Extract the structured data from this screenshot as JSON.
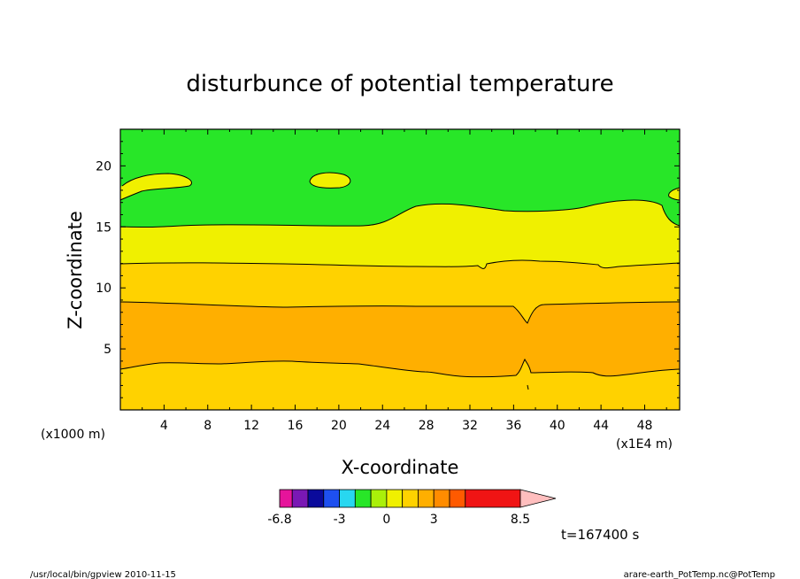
{
  "chart_data": {
    "type": "heatmap",
    "title": "disturbunce of potential temperature",
    "xlabel": "X-coordinate",
    "ylabel": "Z-coordinate",
    "x_unit_note": "(x1E4 m)",
    "y_unit_note": "(x1000 m)",
    "xlim": [
      0,
      51.2
    ],
    "ylim": [
      0,
      23
    ],
    "xticks": [
      "4",
      "8",
      "12",
      "16",
      "20",
      "24",
      "28",
      "32",
      "36",
      "40",
      "44",
      "48"
    ],
    "yticks": [
      "5",
      "10",
      "15",
      "20"
    ],
    "xtick_values": [
      4,
      8,
      12,
      16,
      20,
      24,
      28,
      32,
      36,
      40,
      44,
      48
    ],
    "ytick_values": [
      5,
      10,
      15,
      20
    ],
    "contour_levels": [
      -6.8,
      -6,
      -5,
      -4,
      -3,
      -2,
      -1,
      0,
      1,
      2,
      3,
      4,
      5,
      8.5
    ],
    "color_scale": [
      "#e6149b",
      "#7a18b4",
      "#0a0a9b",
      "#1e50f0",
      "#28d7f0",
      "#28e628",
      "#aaf00a",
      "#f0f000",
      "#ffd200",
      "#ffaf00",
      "#ff8c00",
      "#ff5a00",
      "#f01414",
      "#ff7878",
      "#ffbebe"
    ],
    "colorbar_labels": [
      "-6.8",
      "-3",
      "0",
      "3",
      "8.5"
    ],
    "colorbar_label_values": [
      -6.8,
      -3,
      0,
      3,
      8.5
    ],
    "bands": [
      {
        "level": "0 to 1",
        "color": "#28e628",
        "region": "top layer above ~15-17"
      },
      {
        "level": "1 to 2",
        "color": "#f0f000",
        "region": "~12 to ~15-17"
      },
      {
        "level": "2 to 3",
        "color": "#ffd200",
        "region": "~8.7 to ~12, and bottom below ~3.5"
      },
      {
        "level": "3 to 4",
        "color": "#ffaf00",
        "region": "~3.5 to ~8.7"
      }
    ],
    "time_label": "t=167400 s"
  },
  "footer": {
    "left": "/usr/local/bin/gpview   2010-11-15",
    "right": "arare-earth_PotTemp.nc@PotTemp"
  }
}
